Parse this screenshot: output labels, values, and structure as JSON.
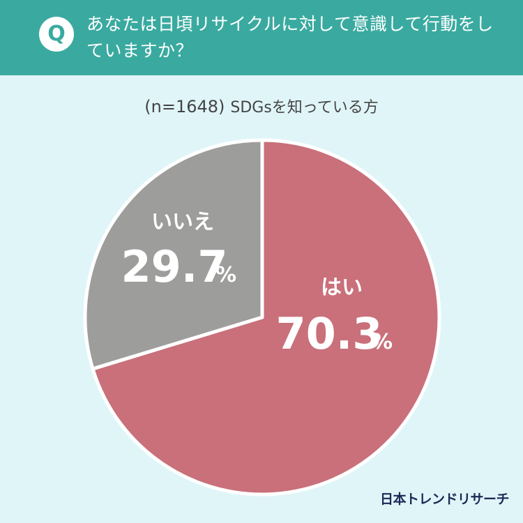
{
  "header": {
    "badge": "Q",
    "question": "あなたは日頃リサイクルに対して意識して行動をしていますか？"
  },
  "subtitle": {
    "n": "(n=1648)",
    "group": "SDGsを知っている方"
  },
  "brand": "日本トレンドリサーチ",
  "colors": {
    "header": "#3aaaa0",
    "background": "#e0f5f8",
    "yes": "#c9707a",
    "no": "#9d9d9b"
  },
  "chart_data": {
    "type": "pie",
    "categories": [
      "はい",
      "いいえ"
    ],
    "values": [
      70.3,
      29.7
    ],
    "labels": [
      "70.3",
      "29.7"
    ],
    "unit": "%",
    "start_angle": "12 o'clock",
    "direction": "clockwise"
  }
}
